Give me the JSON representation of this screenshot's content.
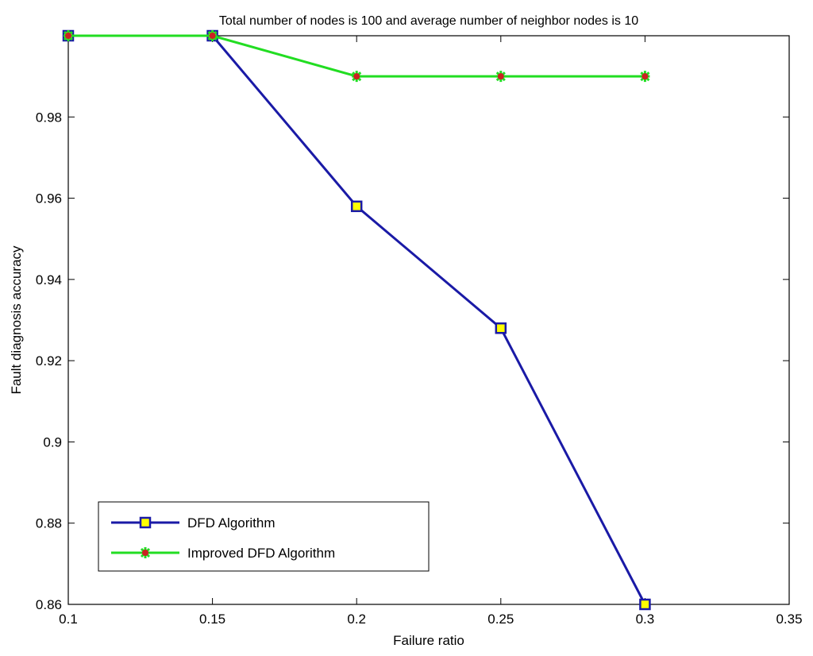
{
  "chart_data": {
    "type": "line",
    "title": "Total number of nodes is 100 and average number of neighbor nodes is 10",
    "xlabel": "Failure ratio",
    "ylabel": "Fault diagnosis accuracy",
    "xlim": [
      0.1,
      0.35
    ],
    "ylim": [
      0.86,
      1.0
    ],
    "xticks": [
      "0.1",
      "0.15",
      "0.2",
      "0.25",
      "0.3",
      "0.35"
    ],
    "yticks": [
      "0.86",
      "0.88",
      "0.9",
      "0.92",
      "0.94",
      "0.96",
      "0.98"
    ],
    "grid": false,
    "legend_position": "lower-left",
    "x": [
      0.1,
      0.15,
      0.2,
      0.25,
      0.3
    ],
    "series": [
      {
        "name": "DFD Algorithm",
        "values": [
          1.0,
          1.0,
          0.958,
          0.928,
          0.86
        ],
        "color": "#1a1aa6",
        "marker": "square",
        "marker_fill": "#ffff00"
      },
      {
        "name": "Improved DFD Algorithm",
        "values": [
          1.0,
          1.0,
          0.99,
          0.99,
          0.99
        ],
        "color": "#22dd22",
        "marker": "star",
        "marker_fill": "#cc2222"
      }
    ]
  }
}
